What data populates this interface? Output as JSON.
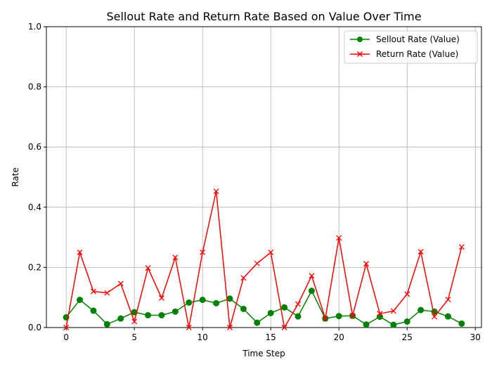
{
  "chart_data": {
    "type": "line",
    "title": "Sellout Rate and Return Rate Based on Value Over Time",
    "xlabel": "Time Step",
    "ylabel": "Rate",
    "xlim": [
      -1.45,
      30.45
    ],
    "ylim": [
      0,
      1.0
    ],
    "xticks": [
      0,
      5,
      10,
      15,
      20,
      25,
      30
    ],
    "yticks": [
      0.0,
      0.2,
      0.4,
      0.6,
      0.8,
      1.0
    ],
    "xtick_labels": [
      "0",
      "5",
      "10",
      "15",
      "20",
      "25",
      "30"
    ],
    "ytick_labels": [
      "0.0",
      "0.2",
      "0.4",
      "0.6",
      "0.8",
      "1.0"
    ],
    "grid": true,
    "legend_position": "top-right",
    "x": [
      0,
      1,
      2,
      3,
      4,
      5,
      6,
      7,
      8,
      9,
      10,
      11,
      12,
      13,
      14,
      15,
      16,
      17,
      18,
      19,
      20,
      21,
      22,
      23,
      24,
      25,
      26,
      27,
      28,
      29
    ],
    "series": [
      {
        "name": "Sellout Rate (Value)",
        "color": "#008000",
        "marker": "circle",
        "values": [
          0.034,
          0.092,
          0.056,
          0.011,
          0.03,
          0.051,
          0.041,
          0.041,
          0.053,
          0.083,
          0.092,
          0.081,
          0.096,
          0.062,
          0.016,
          0.048,
          0.067,
          0.037,
          0.122,
          0.03,
          0.038,
          0.039,
          0.01,
          0.036,
          0.009,
          0.02,
          0.058,
          0.053,
          0.037,
          0.013
        ]
      },
      {
        "name": "Return Rate (Value)",
        "color": "#ff0000",
        "marker": "x",
        "values": [
          0.0,
          0.25,
          0.12,
          0.115,
          0.146,
          0.02,
          0.198,
          0.098,
          0.233,
          0.0,
          0.25,
          0.453,
          0.0,
          0.165,
          0.213,
          0.25,
          0.0,
          0.078,
          0.172,
          0.03,
          0.298,
          0.039,
          0.212,
          0.046,
          0.055,
          0.111,
          0.252,
          0.036,
          0.093,
          0.268
        ]
      }
    ]
  }
}
